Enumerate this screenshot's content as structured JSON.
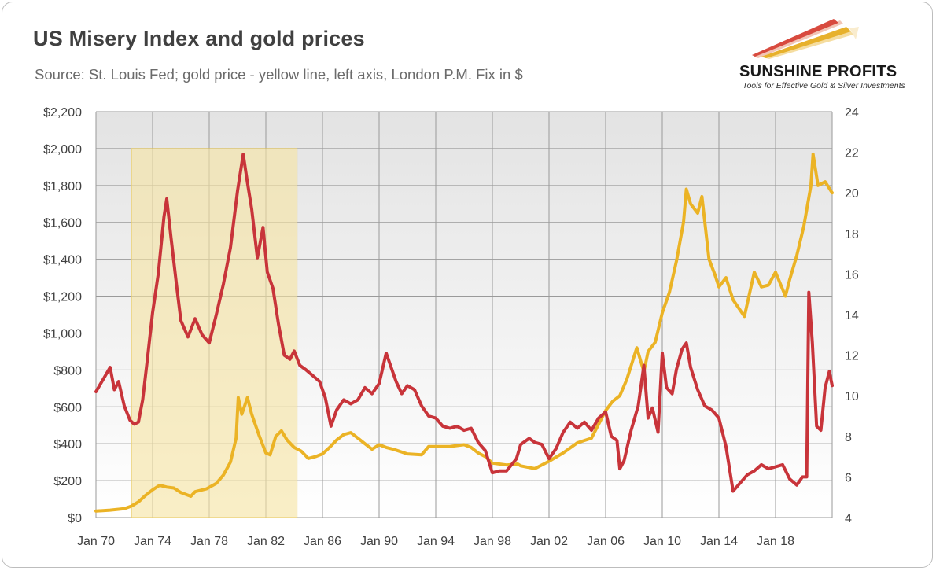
{
  "header": {
    "title": "US Misery Index and gold prices",
    "subtitle": "Source: St. Louis Fed; gold price - yellow line, left axis, London P.M. Fix in $"
  },
  "logo": {
    "name": "SUNSHINE PROFITS",
    "tagline": "Tools for Effective Gold & Silver Investments"
  },
  "colors": {
    "gold_line": "#EBB325",
    "misery_line": "#C8343A",
    "highlight_fill": "#F6E3A3",
    "highlight_border": "#E6C75A",
    "plot_bg_top": "#E3E3E3",
    "plot_bg_bottom": "#FFFFFF",
    "grid": "#9A9A9A"
  },
  "chart_data": {
    "type": "line",
    "x_tick_labels": [
      "Jan 70",
      "Jan 74",
      "Jan 78",
      "Jan 82",
      "Jan 86",
      "Jan 90",
      "Jan 94",
      "Jan 98",
      "Jan 02",
      "Jan 06",
      "Jan 10",
      "Jan 14",
      "Jan 18"
    ],
    "x_range": [
      1970.0,
      2022.0
    ],
    "y_left": {
      "ticks": [
        "$0",
        "$200",
        "$400",
        "$600",
        "$800",
        "$1,000",
        "$1,200",
        "$1,400",
        "$1,600",
        "$1,800",
        "$2,000",
        "$2,200"
      ],
      "range": [
        0,
        2200
      ]
    },
    "y_right": {
      "ticks": [
        "4",
        "6",
        "8",
        "10",
        "12",
        "14",
        "16",
        "18",
        "20",
        "22",
        "24"
      ],
      "range": [
        4,
        24
      ]
    },
    "grid": true,
    "highlight_period": {
      "x": [
        1972.5,
        1984.2
      ],
      "y_left": [
        0,
        2000
      ]
    },
    "series": [
      {
        "axis": "left",
        "points": [
          [
            1970.0,
            35
          ],
          [
            1971.0,
            40
          ],
          [
            1972.0,
            48
          ],
          [
            1972.5,
            62
          ],
          [
            1973.0,
            85
          ],
          [
            1973.5,
            120
          ],
          [
            1974.0,
            150
          ],
          [
            1974.5,
            175
          ],
          [
            1975.0,
            165
          ],
          [
            1975.5,
            160
          ],
          [
            1976.0,
            135
          ],
          [
            1976.7,
            115
          ],
          [
            1977.0,
            140
          ],
          [
            1977.8,
            155
          ],
          [
            1978.5,
            185
          ],
          [
            1979.0,
            230
          ],
          [
            1979.5,
            300
          ],
          [
            1979.9,
            430
          ],
          [
            1980.05,
            650
          ],
          [
            1980.3,
            560
          ],
          [
            1980.7,
            650
          ],
          [
            1981.0,
            560
          ],
          [
            1981.5,
            450
          ],
          [
            1982.0,
            350
          ],
          [
            1982.3,
            340
          ],
          [
            1982.7,
            440
          ],
          [
            1983.1,
            470
          ],
          [
            1983.5,
            420
          ],
          [
            1984.0,
            380
          ],
          [
            1984.5,
            360
          ],
          [
            1985.0,
            320
          ],
          [
            1985.5,
            330
          ],
          [
            1986.0,
            345
          ],
          [
            1986.5,
            380
          ],
          [
            1987.0,
            420
          ],
          [
            1987.5,
            450
          ],
          [
            1988.0,
            460
          ],
          [
            1988.5,
            430
          ],
          [
            1989.0,
            400
          ],
          [
            1989.5,
            370
          ],
          [
            1990.0,
            395
          ],
          [
            1990.5,
            380
          ],
          [
            1991.0,
            370
          ],
          [
            1992.0,
            345
          ],
          [
            1993.0,
            340
          ],
          [
            1993.5,
            385
          ],
          [
            1994.0,
            385
          ],
          [
            1995.0,
            385
          ],
          [
            1996.0,
            395
          ],
          [
            1996.5,
            380
          ],
          [
            1997.0,
            350
          ],
          [
            1997.5,
            330
          ],
          [
            1998.0,
            295
          ],
          [
            1999.0,
            285
          ],
          [
            1999.8,
            290
          ],
          [
            2000.0,
            280
          ],
          [
            2001.0,
            265
          ],
          [
            2002.0,
            305
          ],
          [
            2003.0,
            350
          ],
          [
            2004.0,
            405
          ],
          [
            2005.0,
            430
          ],
          [
            2006.0,
            580
          ],
          [
            2006.5,
            630
          ],
          [
            2007.0,
            660
          ],
          [
            2007.5,
            750
          ],
          [
            2008.2,
            920
          ],
          [
            2008.7,
            790
          ],
          [
            2009.0,
            900
          ],
          [
            2009.5,
            950
          ],
          [
            2010.0,
            1110
          ],
          [
            2010.5,
            1220
          ],
          [
            2011.0,
            1390
          ],
          [
            2011.5,
            1600
          ],
          [
            2011.7,
            1780
          ],
          [
            2012.0,
            1700
          ],
          [
            2012.5,
            1650
          ],
          [
            2012.8,
            1740
          ],
          [
            2013.3,
            1400
          ],
          [
            2013.7,
            1320
          ],
          [
            2014.0,
            1250
          ],
          [
            2014.5,
            1300
          ],
          [
            2015.0,
            1180
          ],
          [
            2015.8,
            1090
          ],
          [
            2016.5,
            1330
          ],
          [
            2017.0,
            1250
          ],
          [
            2017.5,
            1260
          ],
          [
            2018.0,
            1330
          ],
          [
            2018.7,
            1200
          ],
          [
            2019.0,
            1290
          ],
          [
            2019.5,
            1420
          ],
          [
            2020.0,
            1580
          ],
          [
            2020.5,
            1800
          ],
          [
            2020.65,
            1970
          ],
          [
            2021.0,
            1800
          ],
          [
            2021.5,
            1820
          ],
          [
            2022.0,
            1760
          ]
        ]
      },
      {
        "axis": "right",
        "points": [
          [
            1970.0,
            10.2
          ],
          [
            1970.5,
            10.8
          ],
          [
            1971.0,
            11.4
          ],
          [
            1971.3,
            10.3
          ],
          [
            1971.6,
            10.7
          ],
          [
            1972.0,
            9.5
          ],
          [
            1972.4,
            8.8
          ],
          [
            1972.7,
            8.6
          ],
          [
            1973.0,
            8.7
          ],
          [
            1973.3,
            9.8
          ],
          [
            1973.6,
            11.6
          ],
          [
            1974.0,
            14.1
          ],
          [
            1974.4,
            16.0
          ],
          [
            1974.8,
            18.8
          ],
          [
            1975.0,
            19.7
          ],
          [
            1975.3,
            17.8
          ],
          [
            1975.7,
            15.4
          ],
          [
            1976.0,
            13.7
          ],
          [
            1976.5,
            12.9
          ],
          [
            1977.0,
            13.8
          ],
          [
            1977.5,
            13.0
          ],
          [
            1978.0,
            12.6
          ],
          [
            1978.5,
            14.0
          ],
          [
            1979.0,
            15.5
          ],
          [
            1979.5,
            17.3
          ],
          [
            1980.0,
            20.1
          ],
          [
            1980.4,
            21.9
          ],
          [
            1980.7,
            20.5
          ],
          [
            1981.0,
            19.2
          ],
          [
            1981.4,
            16.8
          ],
          [
            1981.8,
            18.3
          ],
          [
            1982.1,
            16.1
          ],
          [
            1982.5,
            15.3
          ],
          [
            1982.9,
            13.5
          ],
          [
            1983.3,
            12.0
          ],
          [
            1983.7,
            11.8
          ],
          [
            1984.0,
            12.2
          ],
          [
            1984.4,
            11.5
          ],
          [
            1984.8,
            11.3
          ],
          [
            1985.3,
            11.0
          ],
          [
            1985.8,
            10.7
          ],
          [
            1986.2,
            9.9
          ],
          [
            1986.6,
            8.5
          ],
          [
            1987.0,
            9.3
          ],
          [
            1987.5,
            9.8
          ],
          [
            1988.0,
            9.6
          ],
          [
            1988.5,
            9.8
          ],
          [
            1989.0,
            10.4
          ],
          [
            1989.5,
            10.1
          ],
          [
            1990.0,
            10.6
          ],
          [
            1990.5,
            12.1
          ],
          [
            1990.9,
            11.3
          ],
          [
            1991.2,
            10.7
          ],
          [
            1991.6,
            10.1
          ],
          [
            1992.0,
            10.5
          ],
          [
            1992.5,
            10.3
          ],
          [
            1993.0,
            9.5
          ],
          [
            1993.5,
            9.0
          ],
          [
            1994.0,
            8.9
          ],
          [
            1994.5,
            8.5
          ],
          [
            1995.0,
            8.4
          ],
          [
            1995.5,
            8.5
          ],
          [
            1996.0,
            8.3
          ],
          [
            1996.5,
            8.4
          ],
          [
            1997.0,
            7.7
          ],
          [
            1997.5,
            7.3
          ],
          [
            1998.0,
            6.2
          ],
          [
            1998.5,
            6.3
          ],
          [
            1999.0,
            6.3
          ],
          [
            1999.7,
            6.9
          ],
          [
            2000.0,
            7.6
          ],
          [
            2000.6,
            7.9
          ],
          [
            2001.0,
            7.7
          ],
          [
            2001.5,
            7.6
          ],
          [
            2002.0,
            6.9
          ],
          [
            2002.5,
            7.4
          ],
          [
            2003.0,
            8.2
          ],
          [
            2003.5,
            8.7
          ],
          [
            2004.0,
            8.4
          ],
          [
            2004.5,
            8.7
          ],
          [
            2005.0,
            8.3
          ],
          [
            2005.5,
            8.9
          ],
          [
            2006.0,
            9.2
          ],
          [
            2006.4,
            8.0
          ],
          [
            2006.8,
            7.8
          ],
          [
            2007.0,
            6.4
          ],
          [
            2007.3,
            6.8
          ],
          [
            2007.8,
            8.3
          ],
          [
            2008.3,
            9.5
          ],
          [
            2008.7,
            11.5
          ],
          [
            2009.0,
            8.9
          ],
          [
            2009.3,
            9.4
          ],
          [
            2009.7,
            8.2
          ],
          [
            2010.0,
            12.1
          ],
          [
            2010.3,
            10.4
          ],
          [
            2010.7,
            10.1
          ],
          [
            2011.0,
            11.3
          ],
          [
            2011.4,
            12.3
          ],
          [
            2011.7,
            12.6
          ],
          [
            2012.0,
            11.4
          ],
          [
            2012.5,
            10.3
          ],
          [
            2013.0,
            9.5
          ],
          [
            2013.5,
            9.3
          ],
          [
            2014.0,
            8.9
          ],
          [
            2014.5,
            7.5
          ],
          [
            2015.0,
            5.3
          ],
          [
            2015.5,
            5.7
          ],
          [
            2016.0,
            6.1
          ],
          [
            2016.5,
            6.3
          ],
          [
            2017.0,
            6.6
          ],
          [
            2017.5,
            6.4
          ],
          [
            2018.0,
            6.5
          ],
          [
            2018.5,
            6.6
          ],
          [
            2019.0,
            5.9
          ],
          [
            2019.5,
            5.6
          ],
          [
            2019.9,
            6.0
          ],
          [
            2020.2,
            6.0
          ],
          [
            2020.35,
            15.1
          ],
          [
            2020.6,
            12.6
          ],
          [
            2020.9,
            8.5
          ],
          [
            2021.2,
            8.3
          ],
          [
            2021.5,
            10.4
          ],
          [
            2021.8,
            11.2
          ],
          [
            2022.0,
            10.5
          ]
        ]
      }
    ]
  }
}
